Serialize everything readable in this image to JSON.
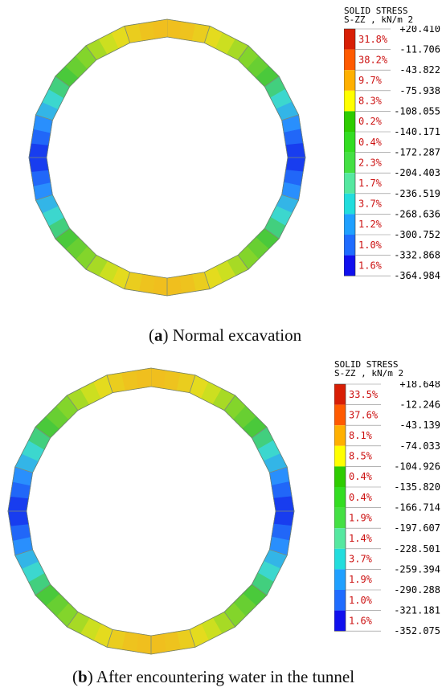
{
  "panels": [
    {
      "id": "a",
      "caption_label": "a",
      "caption_text": "Normal excavation",
      "legend_title_1": "SOLID STRESS",
      "legend_title_2": "S-ZZ , kN/m 2",
      "legend_values": [
        "+20.410",
        "-11.706",
        "-43.822",
        "-75.938",
        "-108.055",
        "-140.171",
        "-172.287",
        "-204.403",
        "-236.519",
        "-268.636",
        "-300.752",
        "-332.868",
        "-364.984"
      ],
      "legend_percents": [
        "31.8%",
        "38.2%",
        "9.7%",
        "8.3%",
        "0.2%",
        "0.4%",
        "2.3%",
        "1.7%",
        "3.7%",
        "1.2%",
        "1.0%",
        "1.6%"
      ]
    },
    {
      "id": "b",
      "caption_label": "b",
      "caption_text": "After encountering water in the tunnel",
      "legend_title_1": "SOLID STRESS",
      "legend_title_2": "S-ZZ , kN/m 2",
      "legend_values": [
        "+18.648",
        "-12.246",
        "-43.139",
        "-74.033",
        "-104.926",
        "-135.820",
        "-166.714",
        "-197.607",
        "-228.501",
        "-259.394",
        "-290.288",
        "-321.181",
        "-352.075"
      ],
      "legend_percents": [
        "33.5%",
        "37.6%",
        "8.1%",
        "8.5%",
        "0.4%",
        "0.4%",
        "1.9%",
        "1.4%",
        "3.7%",
        "1.9%",
        "1.0%",
        "1.6%"
      ]
    }
  ],
  "colors": {
    "legend_bands": [
      "#d81e05",
      "#ff5a00",
      "#ffb000",
      "#ffff00",
      "#2ecc00",
      "#33dd22",
      "#44e044",
      "#55e8a0",
      "#22dddd",
      "#1fa0ff",
      "#1f6cff",
      "#1010ee"
    ],
    "percent_text": "#cc1111"
  }
}
